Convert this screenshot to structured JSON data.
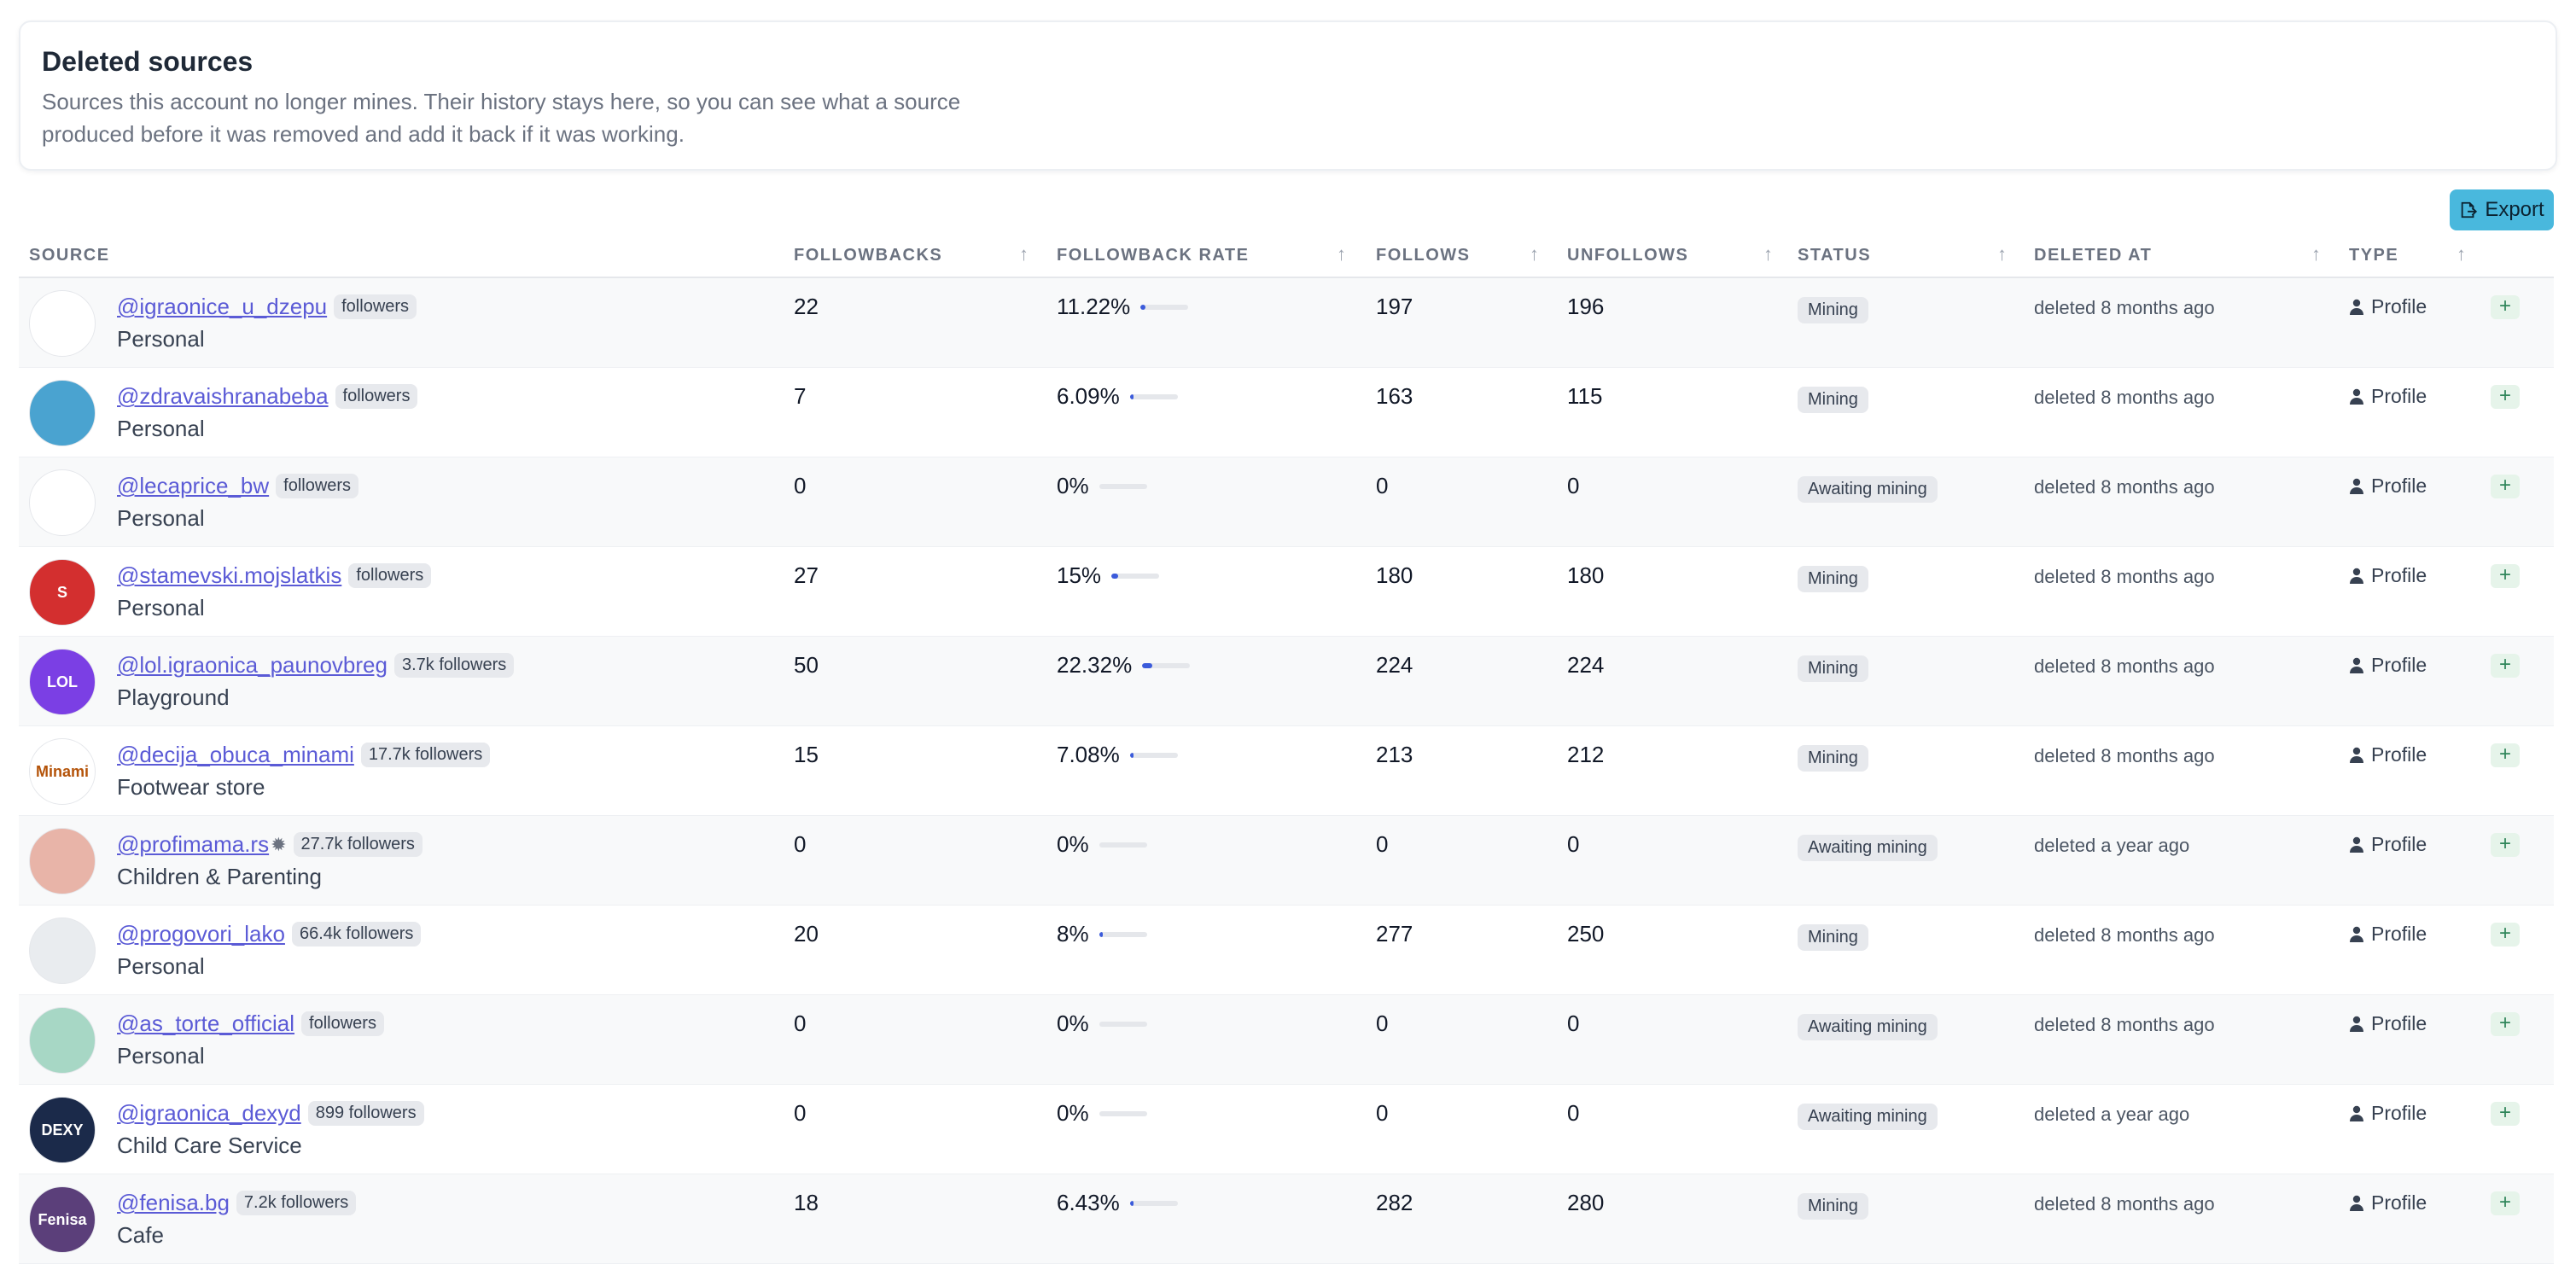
{
  "header": {
    "title": "Deleted sources",
    "description": "Sources this account no longer mines. Their history stays here, so you can see what a source produced before it was removed and add it back if it was working."
  },
  "toolbar": {
    "export_label": "Export",
    "export_icon": "file-export-icon"
  },
  "columns": {
    "source": "SOURCE",
    "followbacks": "FOLLOWBACKS",
    "followback_rate": "FOLLOWBACK RATE",
    "follows": "FOLLOWS",
    "unfollows": "UNFOLLOWS",
    "status": "STATUS",
    "deleted_at": "DELETED AT",
    "type": "TYPE"
  },
  "sort_icon": "↑",
  "rows": [
    {
      "handle": "@igraonice_u_dzepu",
      "badge": "followers",
      "category": "Personal",
      "followbacks": "22",
      "rate": "11.22%",
      "rate_value": 11.22,
      "follows": "197",
      "unfollows": "196",
      "status": "Mining",
      "deleted": "deleted 8 months ago",
      "type": "Profile",
      "avatar_color": "#ffffff",
      "avatar_text": ""
    },
    {
      "handle": "@zdravaishranabeba",
      "badge": "followers",
      "category": "Personal",
      "followbacks": "7",
      "rate": "6.09%",
      "rate_value": 6.09,
      "follows": "163",
      "unfollows": "115",
      "status": "Mining",
      "deleted": "deleted 8 months ago",
      "type": "Profile",
      "avatar_color": "#4aa3d0",
      "avatar_text": ""
    },
    {
      "handle": "@lecaprice_bw",
      "badge": "followers",
      "category": "Personal",
      "followbacks": "0",
      "rate": "0%",
      "rate_value": 0,
      "follows": "0",
      "unfollows": "0",
      "status": "Awaiting mining",
      "deleted": "deleted 8 months ago",
      "type": "Profile",
      "avatar_color": "#ffffff",
      "avatar_text": ""
    },
    {
      "handle": "@stamevski.mojslatkis",
      "badge": "followers",
      "category": "Personal",
      "followbacks": "27",
      "rate": "15%",
      "rate_value": 15,
      "follows": "180",
      "unfollows": "180",
      "status": "Mining",
      "deleted": "deleted 8 months ago",
      "type": "Profile",
      "avatar_color": "#d32f2f",
      "avatar_text": "S"
    },
    {
      "handle": "@lol.igraonica_paunovbreg",
      "badge": "3.7k followers",
      "category": "Playground",
      "followbacks": "50",
      "rate": "22.32%",
      "rate_value": 22.32,
      "follows": "224",
      "unfollows": "224",
      "status": "Mining",
      "deleted": "deleted 8 months ago",
      "type": "Profile",
      "avatar_color": "#7b3fe4",
      "avatar_text": "LOL"
    },
    {
      "handle": "@decija_obuca_minami",
      "badge": "17.7k followers",
      "category": "Footwear store",
      "followbacks": "15",
      "rate": "7.08%",
      "rate_value": 7.08,
      "follows": "213",
      "unfollows": "212",
      "status": "Mining",
      "deleted": "deleted 8 months ago",
      "type": "Profile",
      "avatar_color": "#ffffff",
      "avatar_text": "Minami"
    },
    {
      "handle": "@profimama.rs",
      "badge": "27.7k followers",
      "category": "Children & Parenting",
      "followbacks": "0",
      "rate": "0%",
      "rate_value": 0,
      "follows": "0",
      "unfollows": "0",
      "status": "Awaiting mining",
      "deleted": "deleted a year ago",
      "type": "Profile",
      "avatar_color": "#e8b4a8",
      "avatar_text": "",
      "verified": true
    },
    {
      "handle": "@progovori_lako",
      "badge": "66.4k followers",
      "category": "Personal",
      "followbacks": "20",
      "rate": "8%",
      "rate_value": 8,
      "follows": "277",
      "unfollows": "250",
      "status": "Mining",
      "deleted": "deleted 8 months ago",
      "type": "Profile",
      "avatar_color": "#e9ecef",
      "avatar_text": ""
    },
    {
      "handle": "@as_torte_official",
      "badge": "followers",
      "category": "Personal",
      "followbacks": "0",
      "rate": "0%",
      "rate_value": 0,
      "follows": "0",
      "unfollows": "0",
      "status": "Awaiting mining",
      "deleted": "deleted 8 months ago",
      "type": "Profile",
      "avatar_color": "#a7d7c5",
      "avatar_text": ""
    },
    {
      "handle": "@igraonica_dexyd",
      "badge": "899 followers",
      "category": "Child Care Service",
      "followbacks": "0",
      "rate": "0%",
      "rate_value": 0,
      "follows": "0",
      "unfollows": "0",
      "status": "Awaiting mining",
      "deleted": "deleted a year ago",
      "type": "Profile",
      "avatar_color": "#1b2a4a",
      "avatar_text": "DEXY"
    },
    {
      "handle": "@fenisa.bg",
      "badge": "7.2k followers",
      "category": "Cafe",
      "followbacks": "18",
      "rate": "6.43%",
      "rate_value": 6.43,
      "follows": "282",
      "unfollows": "280",
      "status": "Mining",
      "deleted": "deleted 8 months ago",
      "type": "Profile",
      "avatar_color": "#5b3f7a",
      "avatar_text": "Fenisa"
    }
  ]
}
